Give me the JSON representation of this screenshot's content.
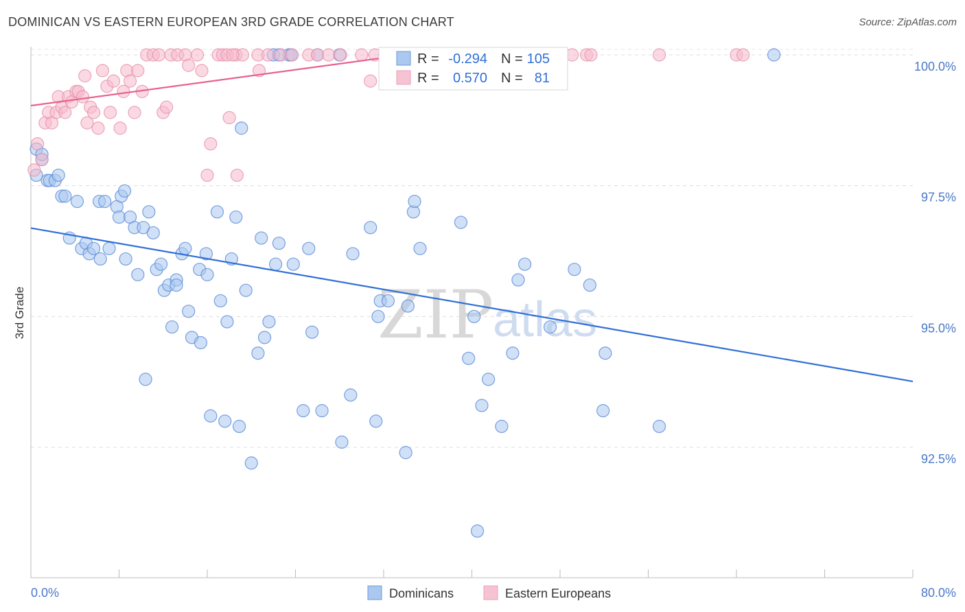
{
  "title": "DOMINICAN VS EASTERN EUROPEAN 3RD GRADE CORRELATION CHART",
  "source": "Source: ZipAtlas.com",
  "watermark": {
    "zip": "ZIP",
    "atlas": "atlas"
  },
  "colors": {
    "blue": "#2f6fd6",
    "blue_fill": "#aac8f0",
    "pink": "#e8608f",
    "pink_fill": "#f6b9cc",
    "grid": "#dcdcdc",
    "axis_text": "#4a78c8"
  },
  "stats": {
    "row1": {
      "r_label": "R =",
      "r_value": "-0.294",
      "n_label": "N =",
      "n_value": "105"
    },
    "row2": {
      "r_label": "R =",
      "r_value": "0.570",
      "n_label": "N =",
      "n_value": "81"
    }
  },
  "legend": {
    "dominicans": "Dominicans",
    "eastern_europeans": "Eastern Europeans"
  },
  "chart_data": {
    "type": "scatter",
    "title": "DOMINICAN VS EASTERN EUROPEAN 3RD GRADE CORRELATION CHART",
    "xlabel": "",
    "ylabel": "3rd Grade",
    "xlim": [
      0,
      80
    ],
    "ylim": [
      90.2,
      100.2
    ],
    "x_tick_labels": [
      "0.0%",
      "80.0%"
    ],
    "y_ticks": [
      92.5,
      95.0,
      97.5,
      100.0
    ],
    "y_tick_labels": [
      "92.5%",
      "95.0%",
      "97.5%",
      "100.0%"
    ],
    "grid": true,
    "legend_position": "bottom-center",
    "series": [
      {
        "name": "Dominicans",
        "color": "#2f6fd6",
        "trend": {
          "x": [
            0,
            80
          ],
          "y": [
            96.69,
            93.76
          ]
        },
        "points": [
          [
            0.5,
            97.7
          ],
          [
            0.5,
            98.2
          ],
          [
            1.0,
            98.0
          ],
          [
            1.0,
            98.1
          ],
          [
            1.5,
            97.6
          ],
          [
            1.7,
            97.6
          ],
          [
            2.2,
            97.6
          ],
          [
            2.5,
            97.7
          ],
          [
            2.8,
            97.3
          ],
          [
            3.1,
            97.3
          ],
          [
            3.5,
            96.5
          ],
          [
            4.2,
            97.2
          ],
          [
            4.6,
            96.3
          ],
          [
            5.0,
            96.4
          ],
          [
            5.3,
            96.2
          ],
          [
            5.7,
            96.3
          ],
          [
            6.2,
            97.2
          ],
          [
            6.3,
            96.1
          ],
          [
            6.7,
            97.2
          ],
          [
            7.1,
            96.3
          ],
          [
            7.8,
            97.1
          ],
          [
            8.0,
            96.9
          ],
          [
            8.2,
            97.3
          ],
          [
            8.5,
            97.4
          ],
          [
            8.6,
            96.1
          ],
          [
            9.0,
            96.9
          ],
          [
            9.4,
            96.7
          ],
          [
            9.7,
            95.8
          ],
          [
            10.2,
            96.7
          ],
          [
            10.4,
            93.8
          ],
          [
            10.7,
            97.0
          ],
          [
            11.1,
            96.6
          ],
          [
            11.4,
            95.9
          ],
          [
            11.8,
            96.0
          ],
          [
            12.1,
            95.5
          ],
          [
            12.5,
            95.6
          ],
          [
            12.8,
            94.8
          ],
          [
            13.2,
            95.7
          ],
          [
            13.7,
            96.2
          ],
          [
            14.0,
            96.3
          ],
          [
            14.3,
            95.1
          ],
          [
            14.6,
            94.6
          ],
          [
            15.3,
            95.9
          ],
          [
            15.4,
            94.5
          ],
          [
            15.9,
            96.2
          ],
          [
            16.0,
            95.8
          ],
          [
            16.3,
            93.1
          ],
          [
            16.9,
            97.0
          ],
          [
            17.2,
            95.3
          ],
          [
            17.6,
            93.0
          ],
          [
            17.8,
            94.9
          ],
          [
            18.2,
            96.1
          ],
          [
            18.6,
            96.9
          ],
          [
            18.9,
            92.9
          ],
          [
            19.1,
            98.6
          ],
          [
            19.5,
            95.5
          ],
          [
            20.0,
            92.2
          ],
          [
            20.6,
            94.3
          ],
          [
            20.9,
            96.5
          ],
          [
            21.2,
            94.6
          ],
          [
            21.6,
            94.9
          ],
          [
            22.0,
            100.0
          ],
          [
            22.2,
            96.0
          ],
          [
            22.5,
            96.4
          ],
          [
            23.4,
            100.0
          ],
          [
            23.6,
            100.0
          ],
          [
            23.8,
            96.0
          ],
          [
            24.7,
            93.2
          ],
          [
            25.2,
            96.3
          ],
          [
            25.5,
            94.7
          ],
          [
            26.0,
            100.0
          ],
          [
            26.4,
            93.2
          ],
          [
            28.0,
            100.0
          ],
          [
            28.2,
            92.6
          ],
          [
            29.0,
            93.5
          ],
          [
            29.2,
            96.2
          ],
          [
            30.8,
            96.7
          ],
          [
            31.3,
            93.0
          ],
          [
            31.5,
            95.0
          ],
          [
            31.7,
            95.3
          ],
          [
            32.4,
            95.3
          ],
          [
            34.0,
            92.4
          ],
          [
            34.2,
            95.2
          ],
          [
            34.7,
            97.0
          ],
          [
            34.8,
            97.2
          ],
          [
            35.3,
            96.3
          ],
          [
            39.0,
            96.8
          ],
          [
            39.7,
            94.2
          ],
          [
            40.2,
            95.0
          ],
          [
            40.5,
            90.9
          ],
          [
            40.9,
            93.3
          ],
          [
            41.5,
            93.8
          ],
          [
            42.7,
            92.9
          ],
          [
            43.7,
            94.3
          ],
          [
            44.2,
            95.7
          ],
          [
            44.8,
            96.0
          ],
          [
            47.1,
            94.8
          ],
          [
            49.3,
            95.9
          ],
          [
            50.7,
            95.6
          ],
          [
            51.9,
            93.2
          ],
          [
            52.1,
            94.3
          ],
          [
            57.0,
            92.9
          ],
          [
            67.4,
            100.0
          ],
          [
            22.5,
            100.0
          ],
          [
            13.2,
            95.6
          ]
        ]
      },
      {
        "name": "Eastern Europeans",
        "color": "#e8608f",
        "trend": {
          "x": [
            0,
            35
          ],
          "y": [
            99.03,
            100.03
          ]
        },
        "points": [
          [
            0.3,
            97.8
          ],
          [
            0.6,
            98.3
          ],
          [
            1.0,
            98.0
          ],
          [
            1.3,
            98.7
          ],
          [
            1.6,
            98.9
          ],
          [
            1.9,
            98.7
          ],
          [
            2.3,
            98.9
          ],
          [
            2.5,
            99.2
          ],
          [
            2.8,
            99.0
          ],
          [
            3.1,
            98.9
          ],
          [
            3.4,
            99.2
          ],
          [
            3.7,
            99.1
          ],
          [
            4.1,
            99.3
          ],
          [
            4.3,
            99.3
          ],
          [
            4.7,
            99.2
          ],
          [
            4.9,
            99.6
          ],
          [
            5.1,
            98.7
          ],
          [
            5.4,
            99.0
          ],
          [
            5.7,
            98.9
          ],
          [
            6.1,
            98.6
          ],
          [
            6.5,
            99.7
          ],
          [
            6.9,
            99.4
          ],
          [
            7.2,
            98.9
          ],
          [
            7.5,
            99.5
          ],
          [
            8.1,
            98.6
          ],
          [
            8.4,
            99.3
          ],
          [
            8.7,
            99.7
          ],
          [
            9.0,
            99.5
          ],
          [
            9.4,
            98.9
          ],
          [
            9.7,
            99.7
          ],
          [
            10.1,
            99.3
          ],
          [
            10.5,
            100.0
          ],
          [
            11.1,
            100.0
          ],
          [
            11.6,
            100.0
          ],
          [
            12.0,
            98.9
          ],
          [
            12.3,
            99.0
          ],
          [
            12.7,
            100.0
          ],
          [
            13.3,
            100.0
          ],
          [
            14.0,
            100.0
          ],
          [
            14.3,
            99.8
          ],
          [
            15.1,
            100.0
          ],
          [
            15.5,
            99.7
          ],
          [
            16.0,
            97.7
          ],
          [
            16.3,
            98.3
          ],
          [
            17.0,
            100.0
          ],
          [
            17.4,
            100.0
          ],
          [
            17.8,
            100.0
          ],
          [
            18.0,
            98.8
          ],
          [
            18.6,
            100.0
          ],
          [
            18.7,
            97.7
          ],
          [
            19.2,
            100.0
          ],
          [
            20.6,
            100.0
          ],
          [
            20.7,
            99.7
          ],
          [
            21.5,
            100.0
          ],
          [
            22.7,
            100.0
          ],
          [
            23.7,
            100.0
          ],
          [
            25.2,
            100.0
          ],
          [
            26.0,
            100.0
          ],
          [
            27.0,
            100.0
          ],
          [
            28.1,
            100.0
          ],
          [
            30.0,
            100.0
          ],
          [
            31.2,
            100.0
          ],
          [
            32.1,
            100.0
          ],
          [
            33.1,
            100.0
          ],
          [
            34.7,
            100.0
          ],
          [
            35.6,
            100.0
          ],
          [
            36.3,
            100.0
          ],
          [
            37.5,
            100.0
          ],
          [
            38.9,
            100.0
          ],
          [
            40.0,
            100.0
          ],
          [
            42.0,
            100.0
          ],
          [
            43.2,
            100.0
          ],
          [
            45.5,
            100.0
          ],
          [
            49.1,
            100.0
          ],
          [
            50.4,
            100.0
          ],
          [
            50.8,
            100.0
          ],
          [
            57.0,
            100.0
          ],
          [
            64.0,
            100.0
          ],
          [
            64.6,
            100.0
          ],
          [
            18.3,
            100.0
          ],
          [
            30.8,
            99.5
          ]
        ]
      }
    ]
  }
}
